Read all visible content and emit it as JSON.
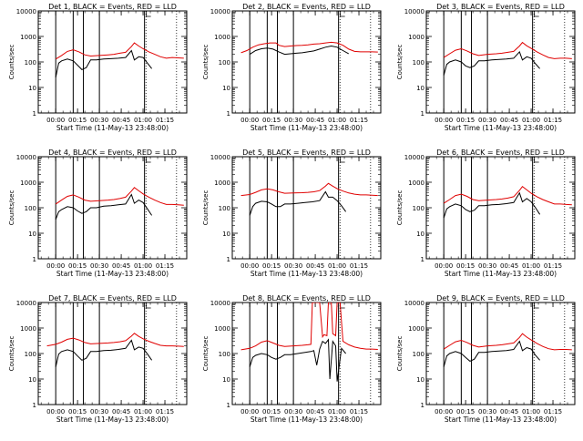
{
  "figure": {
    "legend_black": "Events",
    "legend_red": "LLD",
    "xlabel": "Start Time (11-May-13 23:48:00)",
    "ylabel": "Counts/sec",
    "xticks": [
      "00:00",
      "00:15",
      "00:30",
      "00:45",
      "01:00",
      "01:15"
    ],
    "yticks": [
      "1",
      "10",
      "100",
      "1000",
      "10000"
    ],
    "colors": {
      "events": "#000000",
      "lld": "#e00000"
    }
  },
  "chart_data": [
    {
      "type": "line",
      "title": "Det 1, BLACK = Events, RED = LLD",
      "xlabel": "Start Time (11-May-13 23:48:00)",
      "ylabel": "Counts/sec",
      "x_unit": "minutes after 23:48:00",
      "xlim": [
        0,
        102
      ],
      "ylim": [
        1,
        10000
      ],
      "y_scale": "log",
      "vertical_lines": [
        12,
        24,
        31,
        42,
        73,
        74
      ],
      "series": [
        {
          "name": "Events",
          "x": [
            12,
            14,
            16,
            20,
            24,
            27,
            30,
            33,
            36,
            40,
            45,
            50,
            55,
            60,
            64,
            66,
            69,
            72,
            75,
            78
          ],
          "y": [
            25,
            90,
            110,
            130,
            110,
            75,
            50,
            60,
            120,
            120,
            130,
            135,
            140,
            150,
            280,
            120,
            160,
            150,
            90,
            55
          ]
        },
        {
          "name": "LLD",
          "x": [
            12,
            16,
            20,
            24,
            28,
            32,
            36,
            42,
            48,
            52,
            56,
            60,
            64,
            66,
            69,
            72,
            76,
            80,
            84,
            88,
            92,
            96,
            100
          ],
          "y": [
            130,
            180,
            260,
            300,
            250,
            190,
            170,
            180,
            190,
            200,
            220,
            240,
            400,
            560,
            420,
            330,
            250,
            200,
            160,
            140,
            150,
            145,
            140
          ]
        }
      ]
    },
    {
      "type": "line",
      "title": "Det 2, BLACK = Events, RED = LLD",
      "xlabel": "Start Time (11-May-13 23:48:00)",
      "ylabel": "Counts/sec",
      "x_unit": "minutes after 23:48:00",
      "xlim": [
        0,
        102
      ],
      "ylim": [
        1,
        10000
      ],
      "y_scale": "log",
      "vertical_lines": [
        12,
        24,
        31,
        42,
        73,
        74
      ],
      "series": [
        {
          "name": "Events",
          "x": [
            12,
            16,
            20,
            24,
            28,
            32,
            36,
            40,
            44,
            48,
            52,
            56,
            60,
            64,
            68,
            72,
            76,
            80
          ],
          "y": [
            200,
            280,
            330,
            350,
            320,
            250,
            200,
            210,
            220,
            230,
            250,
            270,
            320,
            380,
            420,
            380,
            280,
            210
          ]
        },
        {
          "name": "LLD",
          "x": [
            6,
            10,
            14,
            18,
            22,
            26,
            30,
            32,
            36,
            40,
            44,
            48,
            52,
            56,
            60,
            64,
            68,
            72,
            76,
            80,
            84,
            88,
            92,
            96,
            100
          ],
          "y": [
            230,
            280,
            380,
            470,
            520,
            560,
            560,
            450,
            400,
            420,
            440,
            450,
            470,
            500,
            520,
            560,
            590,
            560,
            450,
            320,
            260,
            250,
            250,
            250,
            245
          ]
        }
      ]
    },
    {
      "type": "line",
      "title": "Det 3, BLACK = Events, RED = LLD",
      "xlabel": "Start Time (11-May-13 23:48:00)",
      "ylabel": "Counts/sec",
      "x_unit": "minutes after 23:48:00",
      "xlim": [
        0,
        102
      ],
      "ylim": [
        1,
        10000
      ],
      "y_scale": "log",
      "vertical_lines": [
        12,
        24,
        31,
        42,
        73,
        74
      ],
      "series": [
        {
          "name": "Events",
          "x": [
            12,
            14,
            16,
            20,
            24,
            27,
            30,
            33,
            36,
            40,
            45,
            50,
            55,
            60,
            64,
            66,
            69,
            72,
            75,
            78
          ],
          "y": [
            30,
            80,
            100,
            120,
            100,
            70,
            60,
            70,
            110,
            110,
            120,
            125,
            130,
            140,
            250,
            120,
            160,
            140,
            85,
            55
          ]
        },
        {
          "name": "LLD",
          "x": [
            12,
            16,
            20,
            24,
            28,
            32,
            36,
            42,
            48,
            52,
            56,
            60,
            64,
            66,
            69,
            72,
            76,
            80,
            84,
            88,
            92,
            96,
            100
          ],
          "y": [
            150,
            210,
            290,
            330,
            270,
            210,
            180,
            200,
            210,
            220,
            240,
            260,
            420,
            580,
            430,
            340,
            250,
            190,
            150,
            135,
            140,
            140,
            135
          ]
        }
      ]
    },
    {
      "type": "line",
      "title": "Det 4, BLACK = Events, RED = LLD",
      "xlabel": "Start Time (11-May-13 23:48:00)",
      "ylabel": "Counts/sec",
      "x_unit": "minutes after 23:48:00",
      "xlim": [
        0,
        102
      ],
      "ylim": [
        1,
        10000
      ],
      "y_scale": "log",
      "vertical_lines": [
        12,
        24,
        31,
        42,
        73,
        74
      ],
      "series": [
        {
          "name": "Events",
          "x": [
            12,
            14,
            16,
            20,
            24,
            27,
            30,
            33,
            36,
            40,
            45,
            50,
            55,
            60,
            64,
            66,
            69,
            72,
            75,
            78
          ],
          "y": [
            35,
            70,
            85,
            110,
            100,
            75,
            60,
            70,
            100,
            100,
            115,
            120,
            130,
            140,
            330,
            150,
            200,
            160,
            90,
            50
          ]
        },
        {
          "name": "LLD",
          "x": [
            12,
            16,
            20,
            24,
            28,
            32,
            36,
            42,
            48,
            52,
            56,
            60,
            64,
            66,
            69,
            72,
            76,
            80,
            84,
            88,
            92,
            96,
            100
          ],
          "y": [
            140,
            200,
            280,
            320,
            260,
            200,
            180,
            190,
            200,
            210,
            230,
            260,
            450,
            620,
            460,
            350,
            260,
            200,
            160,
            135,
            135,
            130,
            125
          ]
        }
      ]
    },
    {
      "type": "line",
      "title": "Det 5, BLACK = Events, RED = LLD",
      "xlabel": "Start Time (11-May-13 23:48:00)",
      "ylabel": "Counts/sec",
      "x_unit": "minutes after 23:48:00",
      "xlim": [
        0,
        102
      ],
      "ylim": [
        1,
        10000
      ],
      "y_scale": "log",
      "vertical_lines": [
        12,
        24,
        31,
        42,
        73,
        74
      ],
      "series": [
        {
          "name": "Events",
          "x": [
            12,
            14,
            16,
            20,
            24,
            27,
            30,
            33,
            36,
            40,
            45,
            50,
            55,
            60,
            64,
            66,
            69,
            72,
            75,
            78
          ],
          "y": [
            50,
            110,
            150,
            180,
            170,
            140,
            110,
            110,
            140,
            140,
            150,
            160,
            170,
            190,
            420,
            260,
            260,
            190,
            120,
            70
          ]
        },
        {
          "name": "LLD",
          "x": [
            6,
            12,
            16,
            20,
            24,
            28,
            32,
            36,
            42,
            48,
            52,
            56,
            60,
            64,
            66,
            69,
            72,
            76,
            80,
            84,
            88,
            92,
            96,
            100
          ],
          "y": [
            300,
            330,
            400,
            500,
            550,
            500,
            420,
            370,
            380,
            390,
            400,
            420,
            470,
            700,
            900,
            700,
            560,
            450,
            380,
            340,
            320,
            320,
            310,
            300
          ]
        }
      ]
    },
    {
      "type": "line",
      "title": "Det 6, BLACK = Events, RED = LLD",
      "xlabel": "Start Time (11-May-13 23:48:00)",
      "ylabel": "Counts/sec",
      "x_unit": "minutes after 23:48:00",
      "xlim": [
        0,
        102
      ],
      "ylim": [
        1,
        10000
      ],
      "y_scale": "log",
      "vertical_lines": [
        12,
        24,
        31,
        42,
        73,
        74
      ],
      "series": [
        {
          "name": "Events",
          "x": [
            12,
            14,
            16,
            20,
            24,
            27,
            30,
            33,
            36,
            40,
            45,
            50,
            55,
            60,
            64,
            66,
            69,
            72,
            75,
            78
          ],
          "y": [
            40,
            90,
            110,
            140,
            120,
            85,
            70,
            80,
            120,
            120,
            130,
            135,
            145,
            160,
            380,
            170,
            230,
            170,
            100,
            55
          ]
        },
        {
          "name": "LLD",
          "x": [
            12,
            16,
            20,
            24,
            28,
            32,
            36,
            42,
            48,
            52,
            56,
            60,
            64,
            66,
            69,
            72,
            76,
            80,
            84,
            88,
            92,
            96,
            100
          ],
          "y": [
            150,
            210,
            300,
            340,
            280,
            210,
            190,
            200,
            210,
            220,
            240,
            270,
            480,
            680,
            500,
            370,
            270,
            210,
            170,
            140,
            140,
            135,
            130
          ]
        }
      ]
    },
    {
      "type": "line",
      "title": "Det 7, BLACK = Events, RED = LLD",
      "xlabel": "Start Time (11-May-13 23:48:00)",
      "ylabel": "Counts/sec",
      "x_unit": "minutes after 23:48:00",
      "xlim": [
        0,
        102
      ],
      "ylim": [
        1,
        10000
      ],
      "y_scale": "log",
      "vertical_lines": [
        12,
        24,
        31,
        42,
        73,
        74
      ],
      "series": [
        {
          "name": "Events",
          "x": [
            12,
            14,
            16,
            20,
            24,
            27,
            30,
            33,
            36,
            40,
            45,
            50,
            55,
            60,
            64,
            66,
            69,
            72,
            75,
            78
          ],
          "y": [
            30,
            95,
            120,
            140,
            120,
            80,
            55,
            65,
            120,
            120,
            130,
            135,
            145,
            160,
            330,
            140,
            180,
            160,
            95,
            55
          ]
        },
        {
          "name": "LLD",
          "x": [
            6,
            12,
            16,
            20,
            24,
            28,
            32,
            36,
            42,
            48,
            52,
            56,
            60,
            64,
            66,
            69,
            72,
            76,
            80,
            84,
            88,
            92,
            96,
            100
          ],
          "y": [
            200,
            230,
            280,
            360,
            400,
            340,
            270,
            240,
            250,
            260,
            270,
            290,
            320,
            480,
            620,
            470,
            380,
            300,
            250,
            210,
            200,
            200,
            195,
            190
          ]
        }
      ]
    },
    {
      "type": "line",
      "title": "Det 8, BLACK = Events, RED = LLD",
      "xlabel": "Start Time (11-May-13 23:48:00)",
      "ylabel": "Counts/sec",
      "x_unit": "minutes after 23:48:00",
      "xlim": [
        0,
        102
      ],
      "ylim": [
        1,
        10000
      ],
      "y_scale": "log",
      "vertical_lines": [
        12,
        24,
        31,
        42,
        73,
        74
      ],
      "series": [
        {
          "name": "Events",
          "x": [
            12,
            14,
            16,
            20,
            24,
            27,
            30,
            33,
            36,
            40,
            45,
            50,
            54,
            56,
            58,
            60,
            62,
            64,
            66,
            67,
            69,
            71,
            72,
            75,
            78
          ],
          "y": [
            30,
            70,
            85,
            100,
            90,
            70,
            60,
            70,
            90,
            90,
            100,
            110,
            120,
            130,
            35,
            150,
            300,
            250,
            350,
            10,
            300,
            200,
            8,
            160,
            100
          ]
        },
        {
          "name": "LLD",
          "x": [
            6,
            12,
            16,
            20,
            24,
            28,
            32,
            36,
            42,
            48,
            52,
            54,
            55,
            58,
            60,
            62,
            63,
            65,
            66,
            68,
            69,
            71,
            72,
            74,
            76,
            80,
            84,
            88,
            92,
            96,
            100
          ],
          "y": [
            140,
            160,
            200,
            280,
            320,
            260,
            210,
            190,
            200,
            210,
            220,
            230,
            10000,
            10000,
            10000,
            450,
            550,
            500,
            10000,
            10000,
            600,
            500,
            10000,
            10000,
            300,
            220,
            180,
            160,
            150,
            150,
            145
          ]
        }
      ]
    },
    {
      "type": "line",
      "title": "Det 9, BLACK = Events, RED = LLD",
      "xlabel": "Start Time (11-May-13 23:48:00)",
      "ylabel": "Counts/sec",
      "x_unit": "minutes after 23:48:00",
      "xlim": [
        0,
        102
      ],
      "ylim": [
        1,
        10000
      ],
      "y_scale": "log",
      "vertical_lines": [
        12,
        24,
        31,
        42,
        73,
        74
      ],
      "series": [
        {
          "name": "Events",
          "x": [
            12,
            14,
            16,
            20,
            24,
            27,
            30,
            33,
            36,
            40,
            45,
            50,
            55,
            60,
            64,
            66,
            69,
            72,
            75,
            78
          ],
          "y": [
            30,
            80,
            100,
            120,
            100,
            70,
            50,
            60,
            110,
            110,
            120,
            125,
            130,
            145,
            300,
            130,
            170,
            150,
            85,
            55
          ]
        },
        {
          "name": "LLD",
          "x": [
            12,
            16,
            20,
            24,
            28,
            32,
            36,
            42,
            48,
            52,
            56,
            60,
            64,
            66,
            69,
            72,
            76,
            80,
            84,
            88,
            92,
            96,
            100
          ],
          "y": [
            150,
            210,
            290,
            330,
            270,
            210,
            180,
            200,
            210,
            220,
            240,
            260,
            430,
            600,
            440,
            340,
            250,
            190,
            155,
            140,
            145,
            145,
            140
          ]
        }
      ]
    }
  ]
}
